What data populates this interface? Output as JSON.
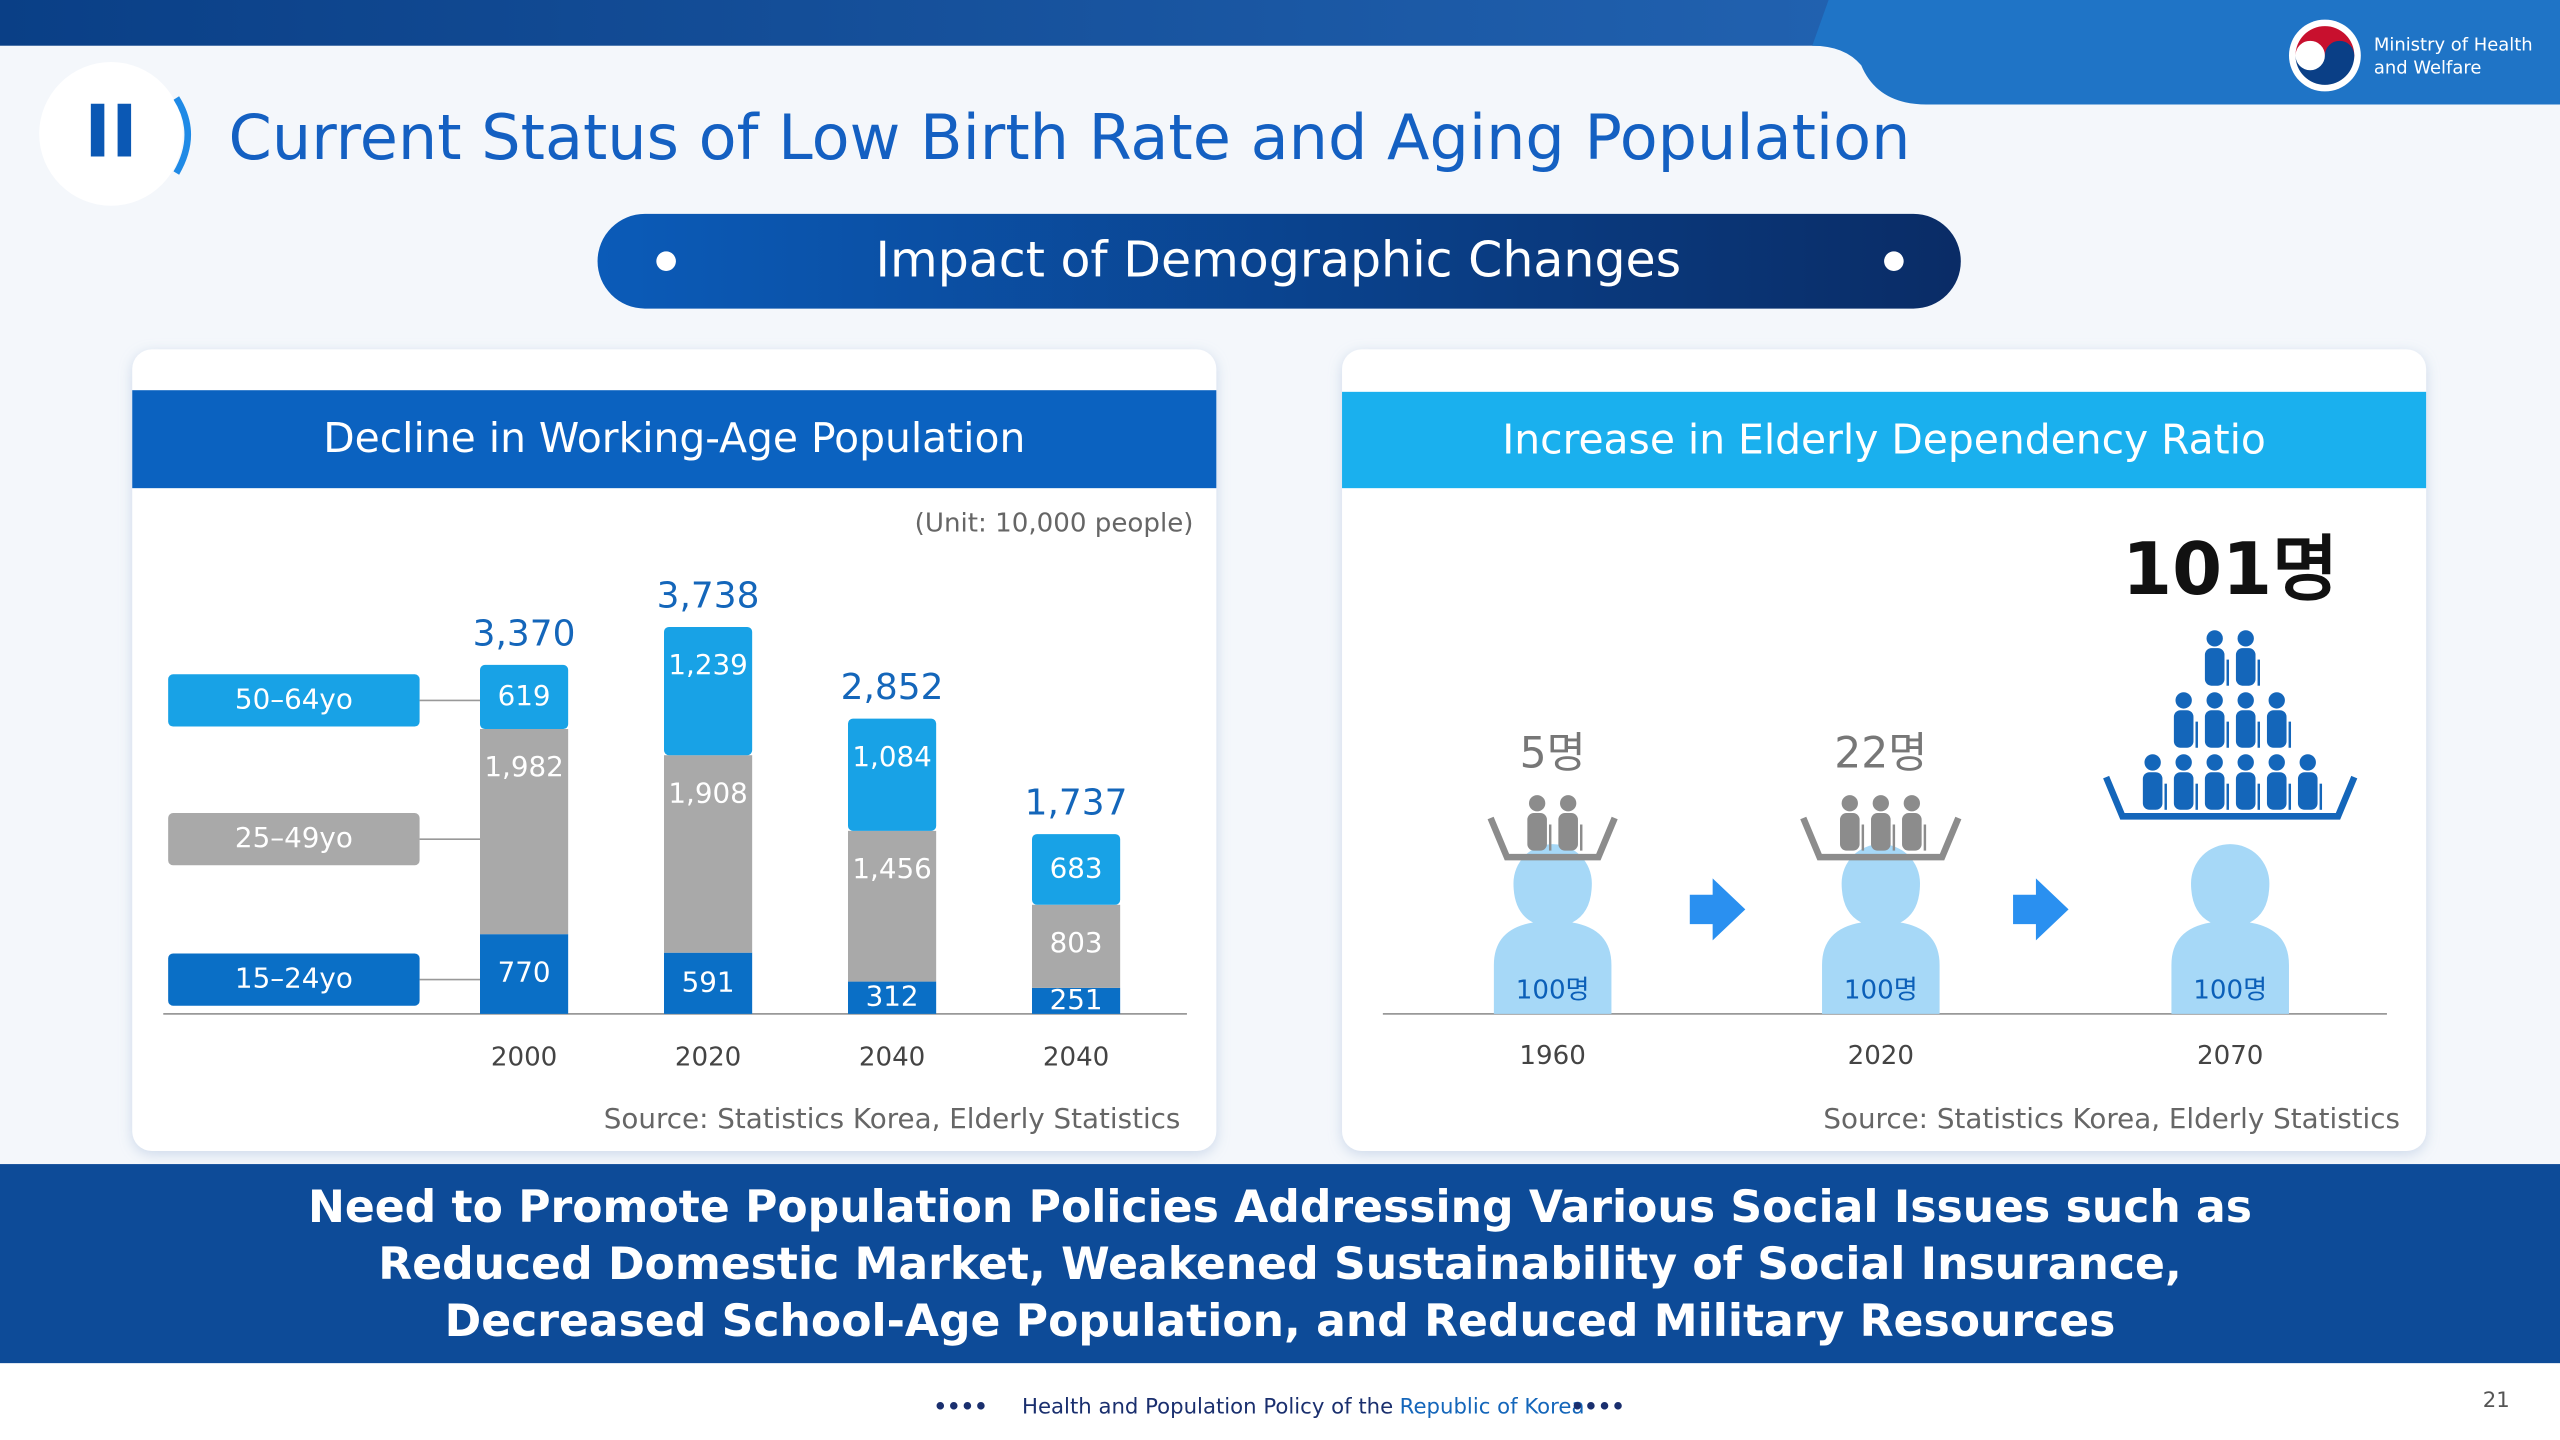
{
  "header": {
    "section": "II",
    "title": "Current Status of Low Birth Rate and Aging Population",
    "logo": [
      "Ministry of Health",
      "and Welfare"
    ]
  },
  "banner": "Impact of Demographic Changes",
  "chart_data": [
    {
      "type": "bar",
      "stacked": true,
      "title": "Decline in Working-Age Population",
      "unit": "(Unit: 10,000 people)",
      "categories": [
        "2000",
        "2020",
        "2040",
        "2040"
      ],
      "series": [
        {
          "name": "15–24yo",
          "color": "#0a6fc6",
          "values": [
            770,
            591,
            312,
            251
          ]
        },
        {
          "name": "25–49yo",
          "color": "#a9a9a9",
          "values": [
            1982,
            1908,
            1456,
            803
          ],
          "value_labels": [
            "1,982",
            "1,908",
            "1,456",
            "803"
          ]
        },
        {
          "name": "50–64yo",
          "color": "#18a2e6",
          "values": [
            619,
            1239,
            1084,
            683
          ],
          "value_labels": [
            "619",
            "1,239",
            "1,084",
            "683"
          ]
        }
      ],
      "totals": [
        {
          "value": 3370,
          "label": "3,370"
        },
        {
          "value": 3738,
          "label": "3,738"
        },
        {
          "value": 2852,
          "label": "2,852"
        },
        {
          "value": 1737,
          "label": "1,737"
        }
      ],
      "source": "Source: Statistics Korea, Elderly Statistics"
    },
    {
      "type": "pictogram",
      "title": "Increase in Elderly Dependency Ratio",
      "categories": [
        "1960",
        "2020",
        "2070"
      ],
      "values": [
        5,
        22,
        101
      ],
      "value_labels": [
        "5명",
        "22명",
        "101명"
      ],
      "colors": [
        "#8c8c8c",
        "#8c8c8c",
        "#1466ba"
      ],
      "base_label": "100명",
      "base_color": "#a6d8f7",
      "source": "Source: Statistics Korea, Elderly Statistics"
    }
  ],
  "footer": {
    "message": [
      "Need to Promote Population Policies Addressing Various Social Issues such as",
      "Reduced Domestic Market, Weakened Sustainability of Social Insurance,",
      "Decreased School-Age Population, and Reduced Military Resources"
    ],
    "tagline": [
      "Health and Population Policy of the",
      "Republic of Korea"
    ],
    "page": 21
  }
}
